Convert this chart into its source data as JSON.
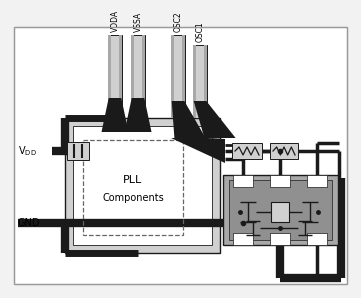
{
  "fig_bg": "#f2f2f2",
  "white": "#ffffff",
  "light_gray": "#d0d0d0",
  "medium_gray": "#a8a8a8",
  "dark_gray": "#606060",
  "black": "#000000",
  "chip_fill": "#e0e0e0",
  "track_color": "#1a1a1a",
  "pin_labels": [
    "VDDA",
    "VSSA",
    "OSC2",
    "OSC1"
  ],
  "vdd_label": "VDD",
  "gnd_label": "GND"
}
